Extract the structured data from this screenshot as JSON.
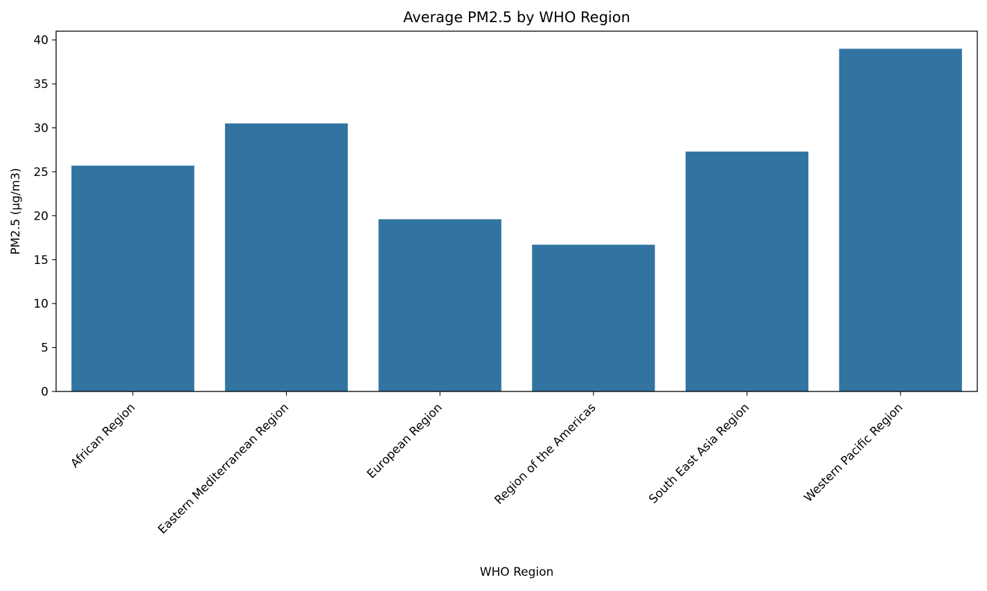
{
  "chart_data": {
    "type": "bar",
    "title": "Average PM2.5 by WHO Region",
    "xlabel": "WHO Region",
    "ylabel": "PM2.5 (µg/m3)",
    "categories": [
      "African Region",
      "Eastern Mediterranean Region",
      "European Region",
      "Region of the Americas",
      "South East Asia Region",
      "Western Pacific Region"
    ],
    "values": [
      25.7,
      30.5,
      19.6,
      16.7,
      27.3,
      39.0
    ],
    "ylim": [
      0,
      41
    ],
    "yticks": [
      0,
      5,
      10,
      15,
      20,
      25,
      30,
      35,
      40
    ],
    "grid": false,
    "bar_color": "#3274a1"
  }
}
